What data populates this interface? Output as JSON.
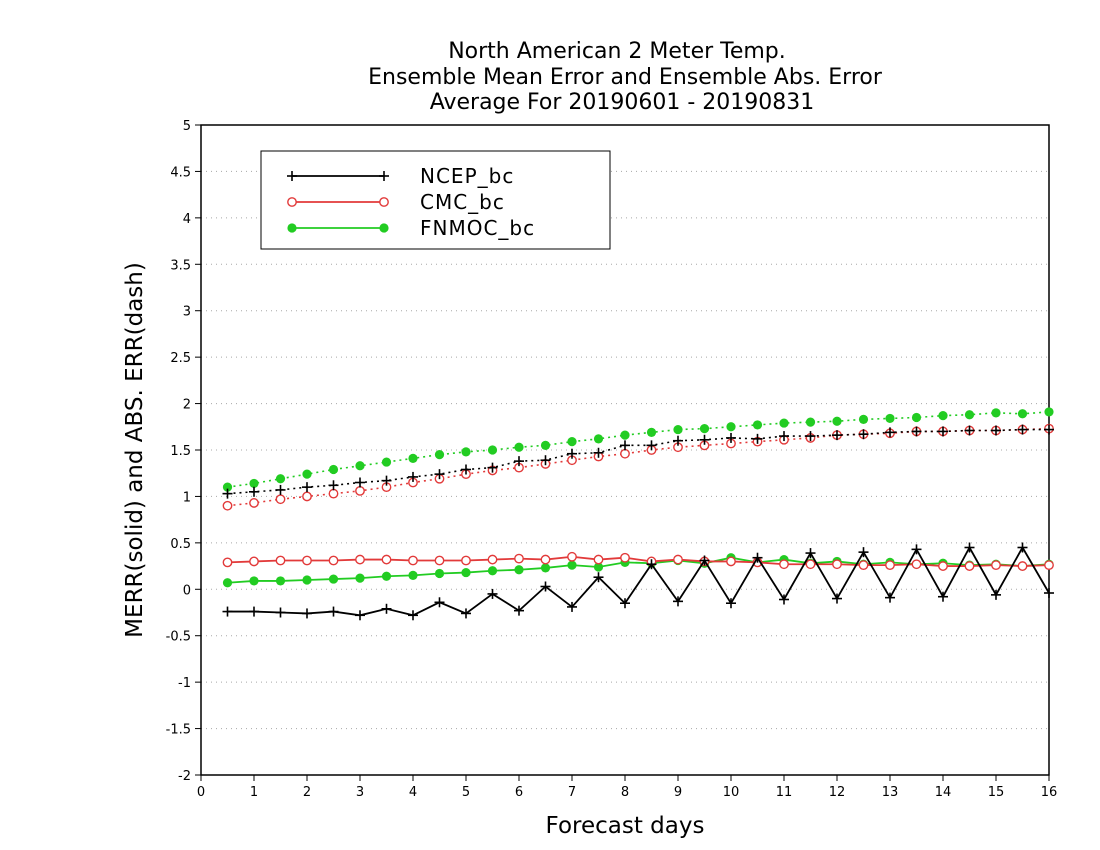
{
  "chart_data": {
    "type": "line",
    "title": [
      "North American 2 Meter Temp.",
      "Ensemble Mean Error and Ensemble Abs. Error",
      "Average For 20190601 - 20190831"
    ],
    "xlabel": "Forecast days",
    "ylabel": "MERR(solid) and ABS. ERR(dash)",
    "xlim": [
      0,
      16
    ],
    "ylim": [
      -2,
      5
    ],
    "x_ticks": [
      0,
      1,
      2,
      3,
      4,
      5,
      6,
      7,
      8,
      9,
      10,
      11,
      12,
      13,
      14,
      15,
      16
    ],
    "x_tick_labels": [
      "0",
      "1",
      "2",
      "3",
      "4",
      "5",
      "6",
      "7",
      "8",
      "9",
      "10",
      "11",
      "12",
      "13",
      "14",
      "15",
      "16"
    ],
    "y_ticks": [
      -2,
      -1.5,
      -1,
      -0.5,
      0,
      0.5,
      1,
      1.5,
      2,
      2.5,
      3,
      3.5,
      4,
      4.5,
      5
    ],
    "y_tick_labels": [
      "-2",
      "-1.5",
      "-1",
      "-0.5",
      "0",
      "0.5",
      "1",
      "1.5",
      "2",
      "2.5",
      "3",
      "3.5",
      "4",
      "4.5",
      "5"
    ],
    "grid": "horizontal dotted",
    "legend_position": "top-left",
    "x": [
      0.5,
      1,
      1.5,
      2,
      2.5,
      3,
      3.5,
      4,
      4.5,
      5,
      5.5,
      6,
      6.5,
      7,
      7.5,
      8,
      8.5,
      9,
      9.5,
      10,
      10.5,
      11,
      11.5,
      12,
      12.5,
      13,
      13.5,
      14,
      14.5,
      15,
      15.5,
      16
    ],
    "series": [
      {
        "name": "NCEP_bc",
        "color": "#000000",
        "marker": "plus",
        "merr": [
          -0.24,
          -0.24,
          -0.25,
          -0.26,
          -0.24,
          -0.28,
          -0.21,
          -0.28,
          -0.14,
          -0.26,
          -0.05,
          -0.23,
          0.03,
          -0.19,
          0.13,
          -0.15,
          0.27,
          -0.13,
          0.31,
          -0.15,
          0.34,
          -0.11,
          0.39,
          -0.1,
          0.4,
          -0.09,
          0.43,
          -0.08,
          0.45,
          -0.06,
          0.45,
          -0.04
        ],
        "abs_err": [
          1.03,
          1.05,
          1.07,
          1.1,
          1.12,
          1.15,
          1.17,
          1.21,
          1.24,
          1.29,
          1.31,
          1.38,
          1.39,
          1.46,
          1.47,
          1.55,
          1.55,
          1.6,
          1.61,
          1.63,
          1.62,
          1.65,
          1.65,
          1.66,
          1.67,
          1.69,
          1.7,
          1.7,
          1.71,
          1.71,
          1.72,
          1.72
        ]
      },
      {
        "name": "CMC_bc",
        "color": "#e23a3a",
        "marker": "open-circle",
        "merr": [
          0.29,
          0.3,
          0.31,
          0.31,
          0.31,
          0.32,
          0.32,
          0.31,
          0.31,
          0.31,
          0.32,
          0.33,
          0.32,
          0.35,
          0.32,
          0.34,
          0.3,
          0.32,
          0.3,
          0.3,
          0.29,
          0.27,
          0.27,
          0.27,
          0.26,
          0.26,
          0.27,
          0.25,
          0.25,
          0.26,
          0.25,
          0.26
        ],
        "abs_err": [
          0.9,
          0.93,
          0.97,
          1.0,
          1.03,
          1.06,
          1.1,
          1.15,
          1.19,
          1.24,
          1.28,
          1.31,
          1.35,
          1.39,
          1.43,
          1.46,
          1.5,
          1.53,
          1.55,
          1.57,
          1.59,
          1.61,
          1.63,
          1.66,
          1.67,
          1.68,
          1.7,
          1.7,
          1.71,
          1.71,
          1.72,
          1.73
        ]
      },
      {
        "name": "FNMOC_bc",
        "color": "#22cc22",
        "marker": "filled-circle",
        "merr": [
          0.07,
          0.09,
          0.09,
          0.1,
          0.11,
          0.12,
          0.14,
          0.15,
          0.17,
          0.18,
          0.2,
          0.21,
          0.23,
          0.26,
          0.24,
          0.29,
          0.28,
          0.31,
          0.28,
          0.34,
          0.29,
          0.32,
          0.28,
          0.3,
          0.27,
          0.29,
          0.27,
          0.28,
          0.26,
          0.27,
          0.25,
          0.27
        ],
        "abs_err": [
          1.1,
          1.14,
          1.19,
          1.24,
          1.29,
          1.33,
          1.37,
          1.41,
          1.45,
          1.48,
          1.5,
          1.53,
          1.55,
          1.59,
          1.62,
          1.66,
          1.69,
          1.72,
          1.73,
          1.75,
          1.77,
          1.79,
          1.8,
          1.81,
          1.83,
          1.84,
          1.85,
          1.87,
          1.88,
          1.9,
          1.89,
          1.91
        ]
      }
    ]
  }
}
